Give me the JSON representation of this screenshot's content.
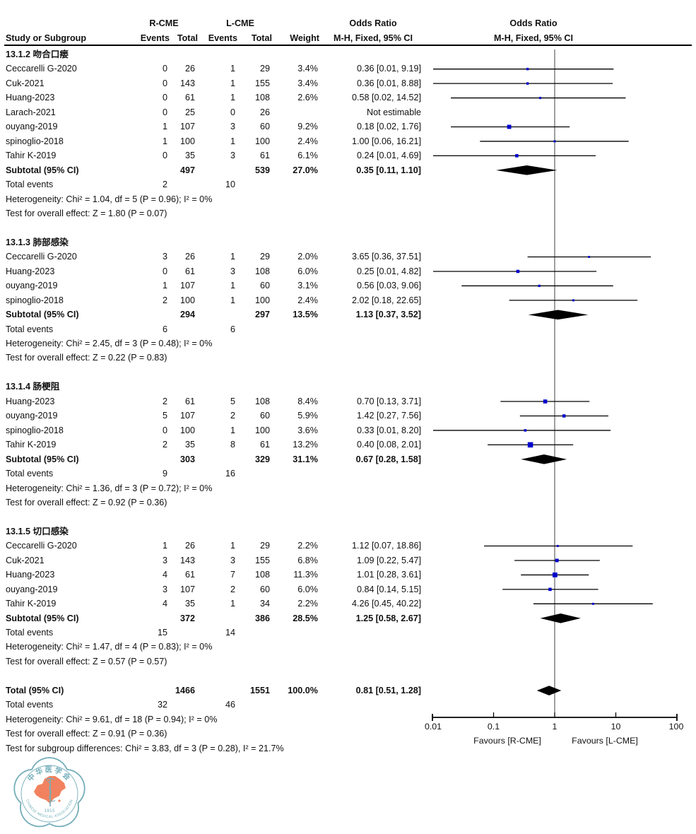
{
  "page": {
    "background": "#ffffff"
  },
  "headers": {
    "r_cme": "R-CME",
    "l_cme": "L-CME",
    "odds_ratio_left": "Odds Ratio",
    "odds_ratio_right": "Odds Ratio",
    "study_or_subgroup": "Study or Subgroup",
    "events_r": "Events",
    "total_r": "Total",
    "events_l": "Events",
    "total_l": "Total",
    "weight": "Weight",
    "mh_fixed_left": "M-H, Fixed, 95% CI",
    "mh_fixed_right": "M-H, Fixed, 95% CI"
  },
  "labels": {
    "subtotal": "Subtotal (95% CI)",
    "total_events": "Total events",
    "total": "Total (95% CI)"
  },
  "axis": {
    "scale": "log",
    "ticks": [
      {
        "label": "0.01",
        "value": 0.01
      },
      {
        "label": "0.1",
        "value": 0.1
      },
      {
        "label": "1",
        "value": 1
      },
      {
        "label": "10",
        "value": 10
      },
      {
        "label": "100",
        "value": 100
      }
    ],
    "favours_left": "Favours [R-CME]",
    "favours_right": "Favours [L-CME]"
  },
  "colors": {
    "marker": "#0000cc",
    "diamond": "#000000",
    "ci_line": "#000000",
    "axis": "#000000",
    "reference_line": "#404040",
    "logo_teal": "#74aeb9",
    "logo_orange": "#f2825f"
  },
  "chart_data": {
    "type": "forest",
    "effect_measure": "Odds Ratio, M-H, Fixed, 95% CI",
    "x_range": [
      0.01,
      100
    ],
    "subgroups": [
      {
        "label": "13.1.2 吻合口瘘",
        "studies": [
          {
            "name": "Ceccarelli G-2020",
            "e1": 0,
            "t1": 26,
            "e2": 1,
            "t2": 29,
            "weight": "3.4%",
            "or_text": "0.36 [0.01, 9.19]",
            "or": 0.36,
            "lo": 0.01,
            "hi": 9.19
          },
          {
            "name": "Cuk-2021",
            "e1": 0,
            "t1": 143,
            "e2": 1,
            "t2": 155,
            "weight": "3.4%",
            "or_text": "0.36 [0.01, 8.88]",
            "or": 0.36,
            "lo": 0.01,
            "hi": 8.88
          },
          {
            "name": "Huang-2023",
            "e1": 0,
            "t1": 61,
            "e2": 1,
            "t2": 108,
            "weight": "2.6%",
            "or_text": "0.58 [0.02, 14.52]",
            "or": 0.58,
            "lo": 0.02,
            "hi": 14.52
          },
          {
            "name": "Larach-2021",
            "e1": 0,
            "t1": 25,
            "e2": 0,
            "t2": 26,
            "weight": "",
            "or_text": "Not estimable",
            "or": null,
            "lo": null,
            "hi": null
          },
          {
            "name": "ouyang-2019",
            "e1": 1,
            "t1": 107,
            "e2": 3,
            "t2": 60,
            "weight": "9.2%",
            "or_text": "0.18 [0.02, 1.76]",
            "or": 0.18,
            "lo": 0.02,
            "hi": 1.76
          },
          {
            "name": "spinoglio-2018",
            "e1": 1,
            "t1": 100,
            "e2": 1,
            "t2": 100,
            "weight": "2.4%",
            "or_text": "1.00 [0.06, 16.21]",
            "or": 1.0,
            "lo": 0.06,
            "hi": 16.21
          },
          {
            "name": "Tahir K-2019",
            "e1": 0,
            "t1": 35,
            "e2": 3,
            "t2": 61,
            "weight": "6.1%",
            "or_text": "0.24 [0.01, 4.69]",
            "or": 0.24,
            "lo": 0.01,
            "hi": 4.69
          }
        ],
        "subtotal": {
          "t1": 497,
          "t2": 539,
          "weight": "27.0%",
          "or_text": "0.35 [0.11, 1.10]",
          "or": 0.35,
          "lo": 0.11,
          "hi": 1.1
        },
        "total_events": {
          "e1": 2,
          "e2": 10
        },
        "heterogeneity": "Heterogeneity: Chi² = 1.04, df = 5 (P = 0.96); I² = 0%",
        "overall_effect": "Test for overall effect: Z = 1.80 (P = 0.07)"
      },
      {
        "label": "13.1.3 肺部感染",
        "studies": [
          {
            "name": "Ceccarelli G-2020",
            "e1": 3,
            "t1": 26,
            "e2": 1,
            "t2": 29,
            "weight": "2.0%",
            "or_text": "3.65 [0.36, 37.51]",
            "or": 3.65,
            "lo": 0.36,
            "hi": 37.51
          },
          {
            "name": "Huang-2023",
            "e1": 0,
            "t1": 61,
            "e2": 3,
            "t2": 108,
            "weight": "6.0%",
            "or_text": "0.25 [0.01, 4.82]",
            "or": 0.25,
            "lo": 0.01,
            "hi": 4.82
          },
          {
            "name": "ouyang-2019",
            "e1": 1,
            "t1": 107,
            "e2": 1,
            "t2": 60,
            "weight": "3.1%",
            "or_text": "0.56 [0.03, 9.06]",
            "or": 0.56,
            "lo": 0.03,
            "hi": 9.06
          },
          {
            "name": "spinoglio-2018",
            "e1": 2,
            "t1": 100,
            "e2": 1,
            "t2": 100,
            "weight": "2.4%",
            "or_text": "2.02 [0.18, 22.65]",
            "or": 2.02,
            "lo": 0.18,
            "hi": 22.65
          }
        ],
        "subtotal": {
          "t1": 294,
          "t2": 297,
          "weight": "13.5%",
          "or_text": "1.13 [0.37, 3.52]",
          "or": 1.13,
          "lo": 0.37,
          "hi": 3.52
        },
        "total_events": {
          "e1": 6,
          "e2": 6
        },
        "heterogeneity": "Heterogeneity: Chi² = 2.45, df = 3 (P = 0.48); I² = 0%",
        "overall_effect": "Test for overall effect: Z = 0.22 (P = 0.83)"
      },
      {
        "label": "13.1.4 肠梗阻",
        "studies": [
          {
            "name": "Huang-2023",
            "e1": 2,
            "t1": 61,
            "e2": 5,
            "t2": 108,
            "weight": "8.4%",
            "or_text": "0.70 [0.13, 3.71]",
            "or": 0.7,
            "lo": 0.13,
            "hi": 3.71
          },
          {
            "name": "ouyang-2019",
            "e1": 5,
            "t1": 107,
            "e2": 2,
            "t2": 60,
            "weight": "5.9%",
            "or_text": "1.42 [0.27, 7.56]",
            "or": 1.42,
            "lo": 0.27,
            "hi": 7.56
          },
          {
            "name": "spinoglio-2018",
            "e1": 0,
            "t1": 100,
            "e2": 1,
            "t2": 100,
            "weight": "3.6%",
            "or_text": "0.33 [0.01, 8.20]",
            "or": 0.33,
            "lo": 0.01,
            "hi": 8.2
          },
          {
            "name": "Tahir K-2019",
            "e1": 2,
            "t1": 35,
            "e2": 8,
            "t2": 61,
            "weight": "13.2%",
            "or_text": "0.40 [0.08, 2.01]",
            "or": 0.4,
            "lo": 0.08,
            "hi": 2.01
          }
        ],
        "subtotal": {
          "t1": 303,
          "t2": 329,
          "weight": "31.1%",
          "or_text": "0.67 [0.28, 1.58]",
          "or": 0.67,
          "lo": 0.28,
          "hi": 1.58
        },
        "total_events": {
          "e1": 9,
          "e2": 16
        },
        "heterogeneity": "Heterogeneity: Chi² = 1.36, df = 3 (P = 0.72); I² = 0%",
        "overall_effect": "Test for overall effect: Z = 0.92 (P = 0.36)"
      },
      {
        "label": "13.1.5 切口感染",
        "studies": [
          {
            "name": "Ceccarelli G-2020",
            "e1": 1,
            "t1": 26,
            "e2": 1,
            "t2": 29,
            "weight": "2.2%",
            "or_text": "1.12 [0.07, 18.86]",
            "or": 1.12,
            "lo": 0.07,
            "hi": 18.86
          },
          {
            "name": "Cuk-2021",
            "e1": 3,
            "t1": 143,
            "e2": 3,
            "t2": 155,
            "weight": "6.8%",
            "or_text": "1.09 [0.22, 5.47]",
            "or": 1.09,
            "lo": 0.22,
            "hi": 5.47
          },
          {
            "name": "Huang-2023",
            "e1": 4,
            "t1": 61,
            "e2": 7,
            "t2": 108,
            "weight": "11.3%",
            "or_text": "1.01 [0.28, 3.61]",
            "or": 1.01,
            "lo": 0.28,
            "hi": 3.61
          },
          {
            "name": "ouyang-2019",
            "e1": 3,
            "t1": 107,
            "e2": 2,
            "t2": 60,
            "weight": "6.0%",
            "or_text": "0.84 [0.14, 5.15]",
            "or": 0.84,
            "lo": 0.14,
            "hi": 5.15
          },
          {
            "name": "Tahir K-2019",
            "e1": 4,
            "t1": 35,
            "e2": 1,
            "t2": 34,
            "weight": "2.2%",
            "or_text": "4.26 [0.45, 40.22]",
            "or": 4.26,
            "lo": 0.45,
            "hi": 40.22
          }
        ],
        "subtotal": {
          "t1": 372,
          "t2": 386,
          "weight": "28.5%",
          "or_text": "1.25 [0.58, 2.67]",
          "or": 1.25,
          "lo": 0.58,
          "hi": 2.67
        },
        "total_events": {
          "e1": 15,
          "e2": 14
        },
        "heterogeneity": "Heterogeneity: Chi² = 1.47, df = 4 (P = 0.83); I² = 0%",
        "overall_effect": "Test for overall effect: Z = 0.57 (P = 0.57)"
      }
    ],
    "total": {
      "t1": 1466,
      "t2": 1551,
      "weight": "100.0%",
      "or_text": "0.81 [0.51, 1.28]",
      "or": 0.81,
      "lo": 0.51,
      "hi": 1.28,
      "total_events": {
        "e1": 32,
        "e2": 46
      },
      "heterogeneity": "Heterogeneity: Chi² = 9.61, df = 18 (P = 0.94); I² = 0%",
      "overall_effect": "Test for overall effect: Z = 0.91 (P = 0.36)",
      "subgroup_differences": "Test for subgroup differences: Chi² = 3.83, df = 3 (P = 0.28), I² = 21.7%"
    }
  },
  "logo": {
    "chinese": "中华医学会",
    "year": "1915",
    "english": "CHINESE MEDICAL ASSOCIATION"
  }
}
